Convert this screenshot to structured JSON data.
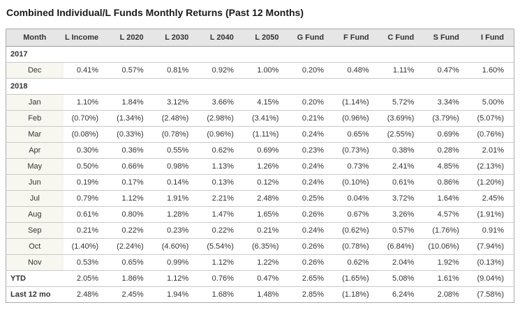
{
  "title": "Combined Individual/L Funds Monthly Returns (Past 12 Months)",
  "colors": {
    "header_bg": "#e6e6e6",
    "month_cell_bg": "#f7f6ef",
    "outer_border": "#a9a9a9",
    "row_divider": "#c9c9c9",
    "text": "#333333"
  },
  "chart_data": {
    "type": "table",
    "title": "Combined Individual/L Funds Monthly Returns (Past 12 Months)",
    "columns": [
      "Month",
      "L Income",
      "L 2020",
      "L 2030",
      "L 2040",
      "L 2050",
      "G Fund",
      "F Fund",
      "C Fund",
      "S Fund",
      "I Fund"
    ],
    "rows": [
      {
        "type": "year",
        "label": "2017",
        "values": []
      },
      {
        "type": "month",
        "label": "Dec",
        "values": [
          "0.41%",
          "0.57%",
          "0.81%",
          "0.92%",
          "1.00%",
          "0.20%",
          "0.48%",
          "1.11%",
          "0.47%",
          "1.60%"
        ]
      },
      {
        "type": "year",
        "label": "2018",
        "values": []
      },
      {
        "type": "month",
        "label": "Jan",
        "values": [
          "1.10%",
          "1.84%",
          "3.12%",
          "3.66%",
          "4.15%",
          "0.20%",
          "(1.14%)",
          "5.72%",
          "3.34%",
          "5.00%"
        ]
      },
      {
        "type": "month",
        "label": "Feb",
        "values": [
          "(0.70%)",
          "(1.34%)",
          "(2.48%)",
          "(2.98%)",
          "(3.41%)",
          "0.21%",
          "(0.96%)",
          "(3.69%)",
          "(3.79%)",
          "(5.07%)"
        ]
      },
      {
        "type": "month",
        "label": "Mar",
        "values": [
          "(0.08%)",
          "(0.33%)",
          "(0.78%)",
          "(0.96%)",
          "(1.11%)",
          "0.24%",
          "0.65%",
          "(2.55%)",
          "0.69%",
          "(0.76%)"
        ]
      },
      {
        "type": "month",
        "label": "Apr",
        "values": [
          "0.30%",
          "0.36%",
          "0.55%",
          "0.62%",
          "0.69%",
          "0.23%",
          "(0.73%)",
          "0.38%",
          "0.28%",
          "2.01%"
        ]
      },
      {
        "type": "month",
        "label": "May",
        "values": [
          "0.50%",
          "0.66%",
          "0.98%",
          "1.13%",
          "1.26%",
          "0.24%",
          "0.73%",
          "2.41%",
          "4.85%",
          "(2.13%)"
        ]
      },
      {
        "type": "month",
        "label": "Jun",
        "values": [
          "0.19%",
          "0.17%",
          "0.14%",
          "0.13%",
          "0.12%",
          "0.24%",
          "(0.10%)",
          "0.61%",
          "0.86%",
          "(1.20%)"
        ]
      },
      {
        "type": "month",
        "label": "Jul",
        "values": [
          "0.79%",
          "1.12%",
          "1.91%",
          "2.21%",
          "2.48%",
          "0.25%",
          "0.04%",
          "3.72%",
          "1.64%",
          "2.45%"
        ]
      },
      {
        "type": "month",
        "label": "Aug",
        "values": [
          "0.61%",
          "0.80%",
          "1.28%",
          "1.47%",
          "1.65%",
          "0.26%",
          "0.67%",
          "3.26%",
          "4.57%",
          "(1.91%)"
        ]
      },
      {
        "type": "month",
        "label": "Sep",
        "values": [
          "0.21%",
          "0.22%",
          "0.23%",
          "0.22%",
          "0.21%",
          "0.24%",
          "(0.62%)",
          "0.57%",
          "(1.76%)",
          "0.91%"
        ]
      },
      {
        "type": "month",
        "label": "Oct",
        "values": [
          "(1.40%)",
          "(2.24%)",
          "(4.60%)",
          "(5.54%)",
          "(6.35%)",
          "0.26%",
          "(0.78%)",
          "(6.84%)",
          "(10.06%)",
          "(7.94%)"
        ]
      },
      {
        "type": "month",
        "label": "Nov",
        "values": [
          "0.53%",
          "0.65%",
          "0.99%",
          "1.12%",
          "1.22%",
          "0.26%",
          "0.62%",
          "2.04%",
          "1.92%",
          "(0.13%)"
        ]
      },
      {
        "type": "summary",
        "label": "YTD",
        "values": [
          "2.05%",
          "1.86%",
          "1.12%",
          "0.76%",
          "0.47%",
          "2.65%",
          "(1.65%)",
          "5.08%",
          "1.61%",
          "(9.04%)"
        ]
      },
      {
        "type": "summary",
        "label": "Last 12 mo",
        "values": [
          "2.48%",
          "2.45%",
          "1.94%",
          "1.68%",
          "1.48%",
          "2.85%",
          "(1.18%)",
          "6.24%",
          "2.08%",
          "(7.58%)"
        ]
      }
    ]
  }
}
